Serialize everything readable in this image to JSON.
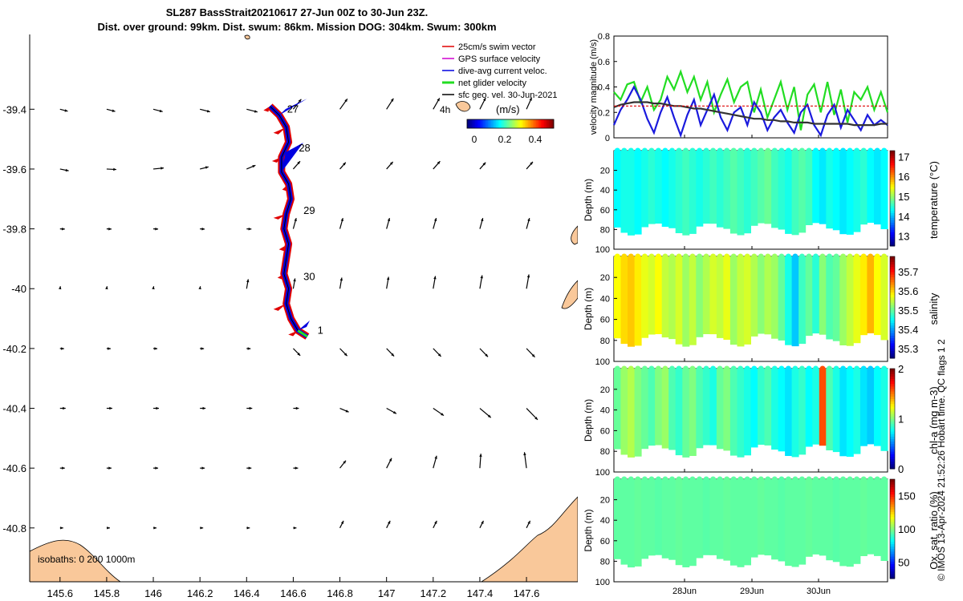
{
  "title_lines": [
    "SL287 BassStrait20210617 27-Jun 00Z to 30-Jun 23Z.",
    "Dist. over ground: 99km. Dist. swum: 86km. Mission DOG: 304km. Swum: 300km"
  ],
  "footer_stamp": "© IMOS 13-Apr-2024 21:52:26 Hobart time. QC flags 1  2",
  "colors": {
    "land": "#f9c89a",
    "swim_vector": "#e00000",
    "gps_velocity": "#d000d0",
    "dive_avg_current": "#0000e0",
    "net_glider": "#22dd22",
    "sfc_geo": "#000000"
  },
  "chart_data": [
    {
      "type": "scatter",
      "name": "map",
      "x_ticks": [
        "145.6",
        "145.8",
        "146",
        "146.2",
        "146.4",
        "146.6",
        "146.8",
        "147",
        "147.2",
        "147.4",
        "147.6"
      ],
      "y_ticks": [
        "-39.4",
        "-39.6",
        "-39.8",
        "-40",
        "-40.2",
        "-40.4",
        "-40.6",
        "-40.8"
      ],
      "xlim": [
        145.47,
        147.82
      ],
      "ylim": [
        -40.98,
        -39.15
      ],
      "legend": [
        "25cm/s swim vector",
        "GPS surface velocity",
        "dive-avg current veloc.",
        "net glider velocity",
        "sfc geo. vel. 30-Jun-2021"
      ],
      "legend_position": "top-right",
      "time_label": "4h",
      "colorbar_unit": "(m/s)",
      "colorbar_ticks": [
        "0",
        "0.2",
        "0.4"
      ],
      "day_labels": [
        {
          "text": "27",
          "lon": 146.56,
          "lat": -39.4
        },
        {
          "text": "28",
          "lon": 146.61,
          "lat": -39.53
        },
        {
          "text": "29",
          "lon": 146.63,
          "lat": -39.74
        },
        {
          "text": "30",
          "lon": 146.63,
          "lat": -39.96
        },
        {
          "text": "1",
          "lon": 146.69,
          "lat": -40.14
        }
      ],
      "track": [
        [
          146.5,
          -39.39
        ],
        [
          146.54,
          -39.42
        ],
        [
          146.57,
          -39.46
        ],
        [
          146.58,
          -39.51
        ],
        [
          146.55,
          -39.56
        ],
        [
          146.55,
          -39.61
        ],
        [
          146.58,
          -39.65
        ],
        [
          146.59,
          -39.7
        ],
        [
          146.57,
          -39.75
        ],
        [
          146.56,
          -39.8
        ],
        [
          146.58,
          -39.85
        ],
        [
          146.57,
          -39.9
        ],
        [
          146.56,
          -39.95
        ],
        [
          146.58,
          -40.0
        ],
        [
          146.57,
          -40.05
        ],
        [
          146.59,
          -40.1
        ],
        [
          146.62,
          -40.14
        ],
        [
          146.66,
          -40.16
        ]
      ],
      "isobaths_label": "isobaths: 0   200  1000m"
    },
    {
      "type": "line",
      "name": "velocity",
      "ylabel": "velocity magnitude (m/s)",
      "ylim": [
        0,
        0.8
      ],
      "y_ticks": [
        "0",
        "0.2",
        "0.4",
        "0.6",
        "0.8"
      ],
      "series": [
        {
          "color": "#22dd22",
          "values": [
            0.36,
            0.3,
            0.42,
            0.44,
            0.28,
            0.4,
            0.22,
            0.3,
            0.48,
            0.38,
            0.52,
            0.36,
            0.48,
            0.3,
            0.44,
            0.2,
            0.34,
            0.46,
            0.28,
            0.4,
            0.44,
            0.2,
            0.38,
            0.16,
            0.3,
            0.44,
            0.22,
            0.4,
            0.06,
            0.34,
            0.42,
            0.2,
            0.44,
            0.18,
            0.38,
            0.12,
            0.36,
            0.3,
            0.4,
            0.22,
            0.36,
            0.2
          ]
        },
        {
          "color": "#1a1add",
          "values": [
            0.1,
            0.22,
            0.3,
            0.4,
            0.3,
            0.15,
            0.04,
            0.2,
            0.32,
            0.16,
            0.02,
            0.18,
            0.3,
            0.1,
            0.22,
            0.34,
            0.16,
            0.06,
            0.2,
            0.24,
            0.1,
            0.28,
            0.2,
            0.06,
            0.16,
            0.22,
            0.12,
            0.04,
            0.2,
            0.26,
            0.1,
            0.02,
            0.18,
            0.26,
            0.08,
            0.22,
            0.14,
            0.06,
            0.18,
            0.1,
            0.14,
            0.1
          ]
        },
        {
          "color": "#333333",
          "values": [
            0.24,
            0.26,
            0.27,
            0.28,
            0.28,
            0.28,
            0.27,
            0.27,
            0.26,
            0.25,
            0.25,
            0.24,
            0.23,
            0.23,
            0.22,
            0.21,
            0.2,
            0.19,
            0.18,
            0.17,
            0.16,
            0.15,
            0.15,
            0.14,
            0.14,
            0.13,
            0.13,
            0.12,
            0.12,
            0.12,
            0.11,
            0.11,
            0.11,
            0.11,
            0.11,
            0.11,
            0.1,
            0.1,
            0.1,
            0.1,
            0.11,
            0.11
          ]
        },
        {
          "color": "#dd0000",
          "values": [
            0.25,
            0.25,
            0.25,
            0.25,
            0.25,
            0.25,
            0.25,
            0.25,
            0.25,
            0.25,
            0.25,
            0.25,
            0.25,
            0.25,
            0.25,
            0.25,
            0.25,
            0.25,
            0.25,
            0.25,
            0.25,
            0.25,
            0.25,
            0.25,
            0.25,
            0.25,
            0.25,
            0.25,
            0.25,
            0.25,
            0.25,
            0.25,
            0.25,
            0.25,
            0.25,
            0.25,
            0.25,
            0.25,
            0.25,
            0.25,
            0.25,
            0.25
          ]
        }
      ]
    },
    {
      "type": "heatmap",
      "name": "temperature",
      "ylabel": "Depth (m)",
      "cbar_label": "temperature (°C)",
      "cbar_ticks": [
        "13",
        "14",
        "15",
        "16",
        "17"
      ],
      "clim": [
        12.5,
        17.3
      ],
      "y_ticks": [
        "20",
        "40",
        "60",
        "80",
        "100"
      ],
      "columns": [
        14.3,
        14.4,
        14.4,
        14.3,
        14.4,
        14.5,
        14.4,
        14.3,
        14.4,
        14.5,
        14.6,
        14.5,
        14.4,
        14.5,
        14.6,
        14.5,
        14.6,
        14.7,
        14.6,
        14.5,
        14.6,
        14.7,
        14.8,
        14.6,
        14.5,
        14.4,
        14.6,
        14.7,
        14.6,
        14.3,
        14.2,
        14.4,
        14.3,
        14.2,
        14.3,
        14.4,
        14.5,
        14.3,
        14.2,
        14.3
      ]
    },
    {
      "type": "heatmap",
      "name": "salinity",
      "ylabel": "Depth (m)",
      "cbar_label": "salinity",
      "cbar_ticks": [
        "35.3",
        "35.4",
        "35.5",
        "35.6",
        "35.7"
      ],
      "clim": [
        35.25,
        35.78
      ],
      "y_ticks": [
        "20",
        "40",
        "60",
        "80",
        "100"
      ],
      "columns": [
        35.58,
        35.6,
        35.61,
        35.59,
        35.57,
        35.56,
        35.58,
        35.55,
        35.54,
        35.56,
        35.53,
        35.55,
        35.52,
        35.54,
        35.56,
        35.55,
        35.57,
        35.53,
        35.55,
        35.56,
        35.54,
        35.52,
        35.54,
        35.53,
        35.5,
        35.46,
        35.42,
        35.48,
        35.5,
        35.47,
        35.52,
        35.49,
        35.5,
        35.53,
        35.55,
        35.57,
        35.59,
        35.62,
        35.58,
        35.56
      ]
    },
    {
      "type": "heatmap",
      "name": "chl-a",
      "ylabel": "Depth (m)",
      "cbar_label": "chl-a (mg m-3)",
      "cbar_ticks": [
        "0",
        "1",
        "2"
      ],
      "clim": [
        0,
        2
      ],
      "y_ticks": [
        "20",
        "40",
        "60",
        "80",
        "100"
      ],
      "columns": [
        0.95,
        1.05,
        1.1,
        1.0,
        0.95,
        0.9,
        1.0,
        1.05,
        0.9,
        0.85,
        0.95,
        1.0,
        0.9,
        0.85,
        0.8,
        0.95,
        1.0,
        0.9,
        0.85,
        0.8,
        0.75,
        0.85,
        0.9,
        0.8,
        0.75,
        0.7,
        0.8,
        0.85,
        0.75,
        0.8,
        1.6,
        0.9,
        0.8,
        0.7,
        0.75,
        0.8,
        0.7,
        0.65,
        0.75,
        0.8
      ]
    },
    {
      "type": "heatmap",
      "name": "oxygen",
      "ylabel": "Depth (m)",
      "cbar_label": "Ox. sat. ratio (%)",
      "cbar_ticks": [
        "50",
        "100",
        "150"
      ],
      "clim": [
        25,
        175
      ],
      "y_ticks": [
        "20",
        "40",
        "60",
        "80",
        "100"
      ],
      "columns": [
        95,
        95,
        95,
        96,
        95,
        95,
        94,
        95,
        95,
        96,
        95,
        95,
        95,
        94,
        95,
        95,
        96,
        95,
        95,
        95,
        95,
        96,
        95,
        95,
        94,
        95,
        95,
        95,
        96,
        95,
        95,
        95,
        94,
        95,
        95,
        95,
        96,
        95,
        95,
        95
      ]
    }
  ],
  "time_axis": {
    "x_ticks": [
      "28Jun",
      "29Jun",
      "30Jun"
    ]
  }
}
